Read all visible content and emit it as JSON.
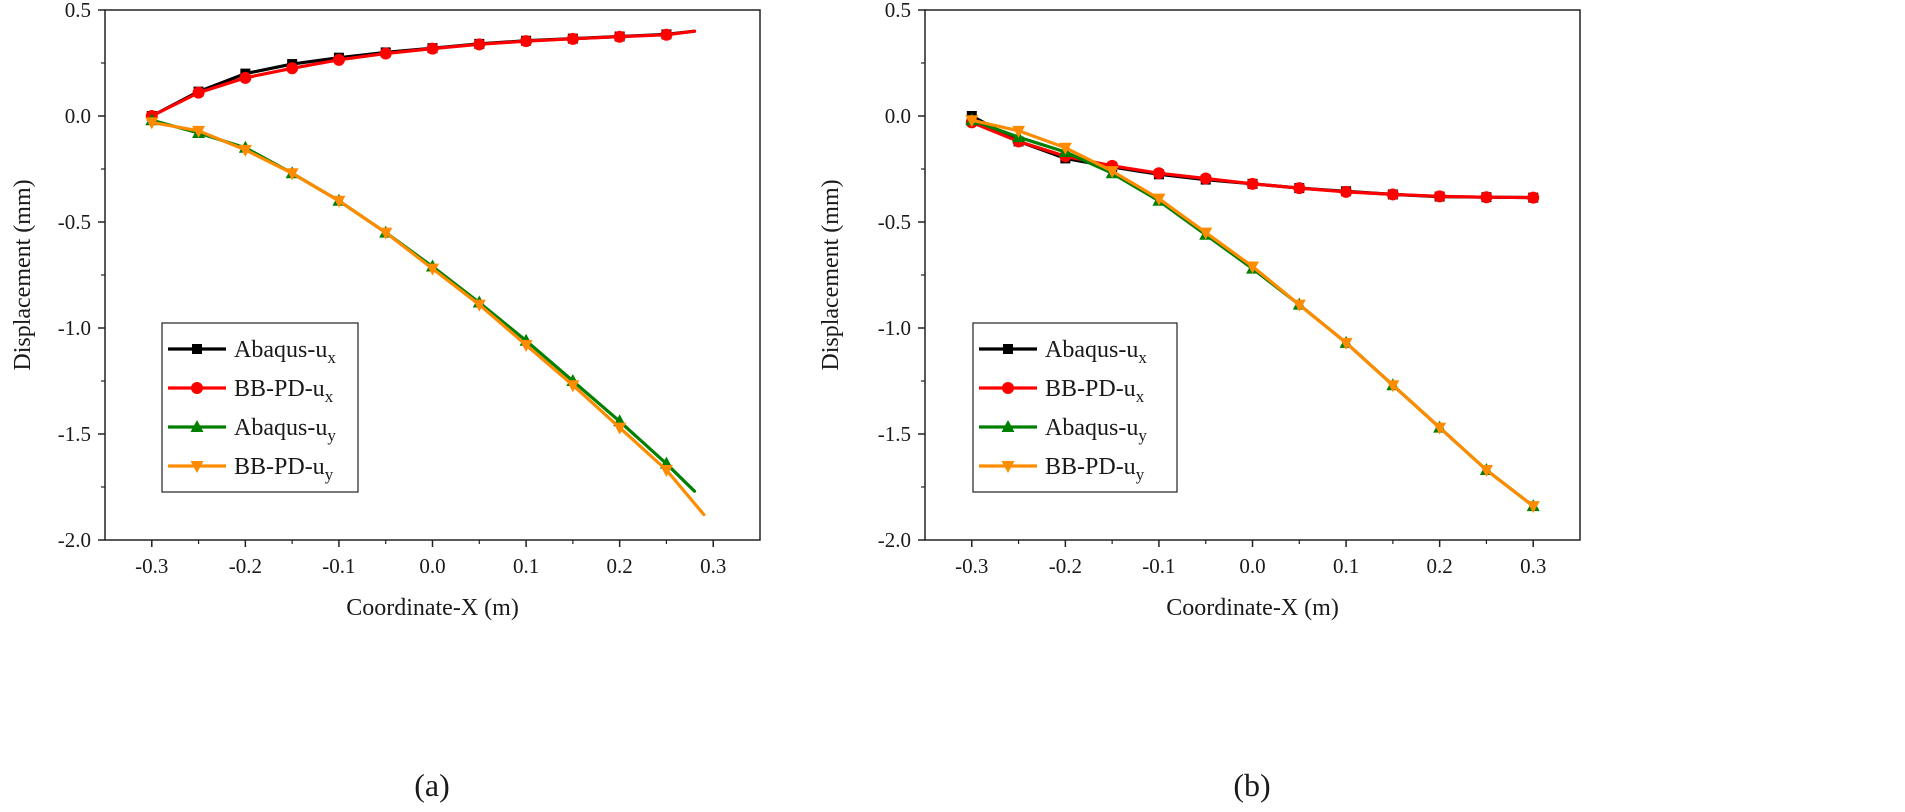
{
  "chart_data": [
    {
      "id": "a",
      "type": "line",
      "panel_label": "(a)",
      "xlabel": "Coordinate-X (m)",
      "ylabel": "Displacement (mm)",
      "xlim": [
        -0.35,
        0.35
      ],
      "ylim": [
        -2.0,
        0.5
      ],
      "xticks": [
        -0.3,
        -0.2,
        -0.1,
        0.0,
        0.1,
        0.2,
        0.3
      ],
      "xtick_labels": [
        "-0.3",
        "-0.2",
        "-0.1",
        "0.0",
        "0.1",
        "0.2",
        "0.3"
      ],
      "yticks": [
        0.5,
        0.0,
        -0.5,
        -1.0,
        -1.5,
        -2.0
      ],
      "ytick_labels": [
        "0.5",
        "0.0",
        "-0.5",
        "-1.0",
        "-1.5",
        "-2.0"
      ],
      "legend_position": "bottom-left",
      "series": [
        {
          "name": "Abaqus-ux",
          "label_main": "Abaqus-u",
          "label_sub": "x",
          "color": "#000000",
          "marker": "square",
          "x": [
            -0.3,
            -0.25,
            -0.2,
            -0.15,
            -0.1,
            -0.05,
            0.0,
            0.05,
            0.1,
            0.15,
            0.2,
            0.25
          ],
          "y": [
            0.0,
            0.115,
            0.2,
            0.245,
            0.275,
            0.3,
            0.32,
            0.34,
            0.355,
            0.365,
            0.375,
            0.385
          ],
          "x_end": 0.28,
          "y_end": 0.4
        },
        {
          "name": "BB-PD-ux",
          "label_main": "BB-PD-u",
          "label_sub": "x",
          "color": "#ff0000",
          "marker": "circle",
          "x": [
            -0.3,
            -0.25,
            -0.2,
            -0.15,
            -0.1,
            -0.05,
            0.0,
            0.05,
            0.1,
            0.15,
            0.2,
            0.25
          ],
          "y": [
            0.0,
            0.11,
            0.18,
            0.225,
            0.265,
            0.295,
            0.318,
            0.338,
            0.353,
            0.364,
            0.374,
            0.383
          ],
          "x_end": 0.28,
          "y_end": 0.4
        },
        {
          "name": "Abaqus-uy",
          "label_main": "Abaqus-u",
          "label_sub": "y",
          "color": "#008000",
          "marker": "triangle-up",
          "x": [
            -0.3,
            -0.25,
            -0.2,
            -0.15,
            -0.1,
            -0.05,
            0.0,
            0.05,
            0.1,
            0.15,
            0.2,
            0.25
          ],
          "y": [
            -0.02,
            -0.08,
            -0.15,
            -0.27,
            -0.4,
            -0.55,
            -0.71,
            -0.88,
            -1.06,
            -1.25,
            -1.44,
            -1.64
          ],
          "x_end": 0.28,
          "y_end": -1.77
        },
        {
          "name": "BB-PD-uy",
          "label_main": "BB-PD-u",
          "label_sub": "y",
          "color": "#ff8c00",
          "marker": "triangle-down",
          "x": [
            -0.3,
            -0.25,
            -0.2,
            -0.15,
            -0.1,
            -0.05,
            0.0,
            0.05,
            0.1,
            0.15,
            0.2,
            0.25
          ],
          "y": [
            -0.03,
            -0.07,
            -0.16,
            -0.27,
            -0.4,
            -0.55,
            -0.72,
            -0.89,
            -1.08,
            -1.27,
            -1.47,
            -1.67
          ],
          "x_end": 0.29,
          "y_end": -1.88
        }
      ]
    },
    {
      "id": "b",
      "type": "line",
      "panel_label": "(b)",
      "xlabel": "Coordinate-X (m)",
      "ylabel": "Displacement (mm)",
      "xlim": [
        -0.35,
        0.35
      ],
      "ylim": [
        -2.0,
        0.5
      ],
      "xticks": [
        -0.3,
        -0.2,
        -0.1,
        0.0,
        0.1,
        0.2,
        0.3
      ],
      "xtick_labels": [
        "-0.3",
        "-0.2",
        "-0.1",
        "0.0",
        "0.1",
        "0.2",
        "0.3"
      ],
      "yticks": [
        0.5,
        0.0,
        -0.5,
        -1.0,
        -1.5,
        -2.0
      ],
      "ytick_labels": [
        "0.5",
        "0.0",
        "-0.5",
        "-1.0",
        "-1.5",
        "-2.0"
      ],
      "legend_position": "bottom-left",
      "series": [
        {
          "name": "Abaqus-ux",
          "label_main": "Abaqus-u",
          "label_sub": "x",
          "color": "#000000",
          "marker": "square",
          "x": [
            -0.3,
            -0.25,
            -0.2,
            -0.15,
            -0.1,
            -0.05,
            0.0,
            0.05,
            0.1,
            0.15,
            0.2,
            0.25,
            0.3
          ],
          "y": [
            0.0,
            -0.12,
            -0.2,
            -0.24,
            -0.275,
            -0.3,
            -0.32,
            -0.34,
            -0.355,
            -0.37,
            -0.38,
            -0.383,
            -0.385
          ]
        },
        {
          "name": "BB-PD-ux",
          "label_main": "BB-PD-u",
          "label_sub": "x",
          "color": "#ff0000",
          "marker": "circle",
          "x": [
            -0.3,
            -0.25,
            -0.2,
            -0.15,
            -0.1,
            -0.05,
            0.0,
            0.05,
            0.1,
            0.15,
            0.2,
            0.25,
            0.3
          ],
          "y": [
            -0.03,
            -0.12,
            -0.19,
            -0.235,
            -0.27,
            -0.295,
            -0.32,
            -0.34,
            -0.358,
            -0.37,
            -0.379,
            -0.383,
            -0.385
          ]
        },
        {
          "name": "Abaqus-uy",
          "label_main": "Abaqus-u",
          "label_sub": "y",
          "color": "#008000",
          "marker": "triangle-up",
          "x": [
            -0.3,
            -0.25,
            -0.2,
            -0.15,
            -0.1,
            -0.05,
            0.0,
            0.05,
            0.1,
            0.15,
            0.2,
            0.25,
            0.3
          ],
          "y": [
            -0.02,
            -0.1,
            -0.17,
            -0.27,
            -0.4,
            -0.56,
            -0.72,
            -0.89,
            -1.07,
            -1.27,
            -1.47,
            -1.67,
            -1.84
          ]
        },
        {
          "name": "BB-PD-uy",
          "label_main": "BB-PD-u",
          "label_sub": "y",
          "color": "#ff8c00",
          "marker": "triangle-down",
          "x": [
            -0.3,
            -0.25,
            -0.2,
            -0.15,
            -0.1,
            -0.05,
            0.0,
            0.05,
            0.1,
            0.15,
            0.2,
            0.25,
            0.3
          ],
          "y": [
            -0.02,
            -0.07,
            -0.15,
            -0.26,
            -0.39,
            -0.55,
            -0.71,
            -0.89,
            -1.07,
            -1.27,
            -1.47,
            -1.67,
            -1.84
          ]
        }
      ]
    }
  ]
}
